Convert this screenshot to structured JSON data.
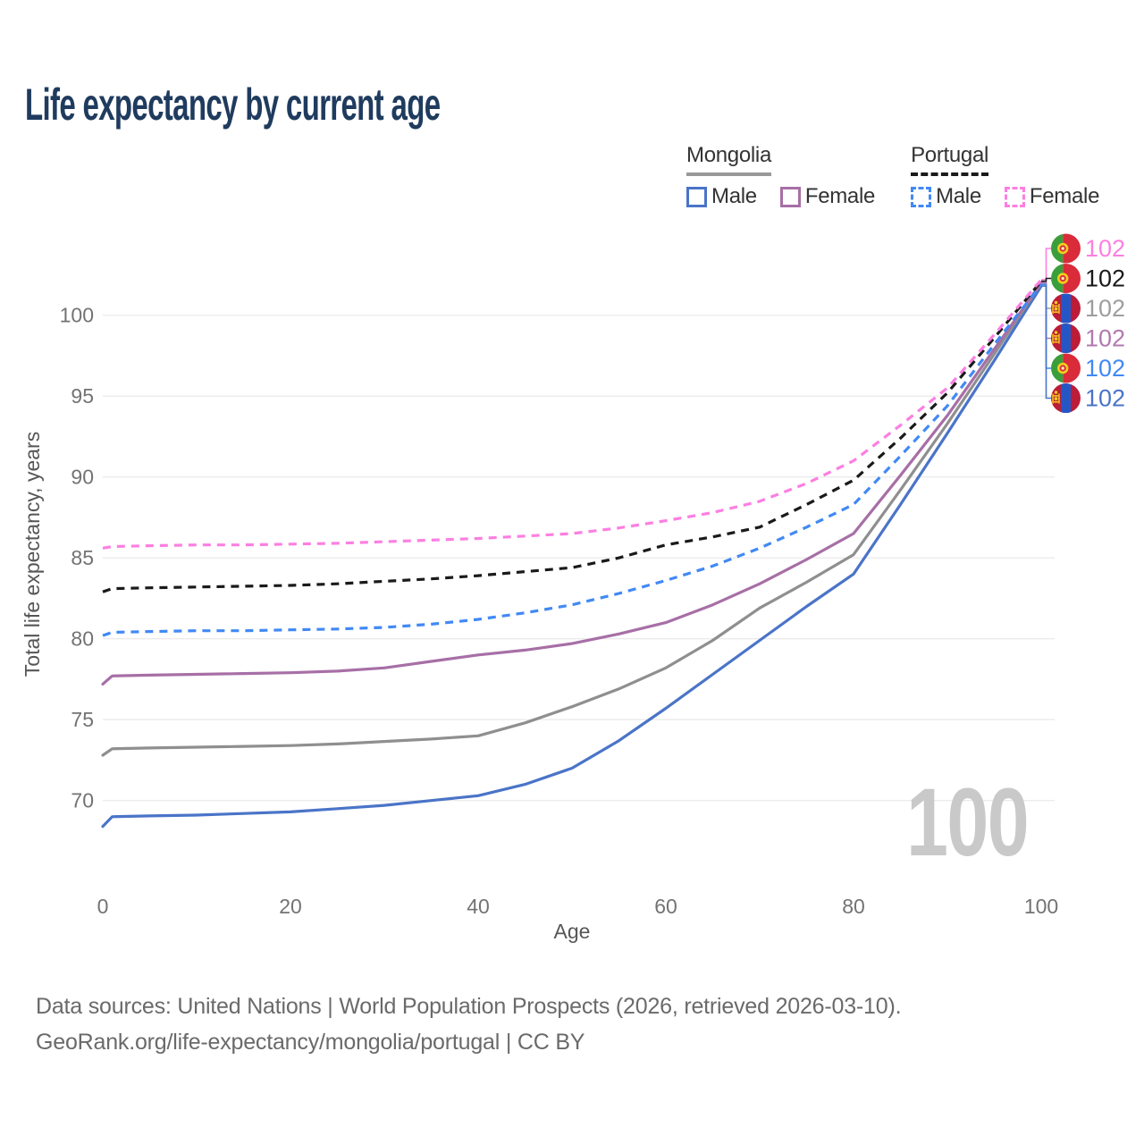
{
  "title": "Life expectancy by current age",
  "legend": {
    "groups": [
      {
        "name": "Mongolia",
        "underline_style": "solid",
        "underline_color": "#999999",
        "items": [
          {
            "label": "Male",
            "color": "#4a74c8",
            "dashed": false
          },
          {
            "label": "Female",
            "color": "#a76fa6",
            "dashed": false
          }
        ]
      },
      {
        "name": "Portugal",
        "underline_style": "dashed",
        "underline_color": "#1a1a1a",
        "items": [
          {
            "label": "Male",
            "color": "#4189f4",
            "dashed": true
          },
          {
            "label": "Female",
            "color": "#fc7fe1",
            "dashed": true
          }
        ]
      }
    ]
  },
  "watermark": "100",
  "footer": {
    "line1": "Data sources: United Nations | World Population Prospects (2026, retrieved 2026-03-10).",
    "line2": "GeoRank.org/life-expectancy/mongolia/portugal | CC BY"
  },
  "chart_data": {
    "type": "line",
    "title": "Life expectancy by current age",
    "xlabel": "Age",
    "ylabel": "Total life expectancy, years",
    "xlim": [
      0,
      100
    ],
    "ylim": [
      68,
      102.5
    ],
    "xticks": [
      0,
      20,
      40,
      60,
      80,
      100
    ],
    "yticks": [
      70,
      75,
      80,
      85,
      90,
      95,
      100
    ],
    "grid": "horizontal",
    "legend_position": "top-right",
    "x": [
      0,
      1,
      5,
      10,
      15,
      20,
      25,
      30,
      35,
      40,
      45,
      50,
      55,
      60,
      65,
      70,
      75,
      80,
      85,
      90,
      95,
      100
    ],
    "series": [
      {
        "name": "Mongolia Male",
        "country": "Mongolia",
        "sex": "Male",
        "color": "#4a74c8",
        "label_color": "#4a74c8",
        "dashed": false,
        "flag": "mongolia",
        "end_label": "102",
        "values": [
          68.4,
          69.0,
          69.05,
          69.1,
          69.2,
          69.3,
          69.5,
          69.7,
          70.0,
          70.3,
          71.0,
          72.0,
          73.7,
          75.7,
          77.8,
          79.9,
          82.0,
          84.0,
          88.3,
          92.7,
          97.2,
          101.8
        ]
      },
      {
        "name": "Mongolia",
        "country": "Mongolia",
        "sex": "Both",
        "color": "#8f8f8f",
        "label_color": "#9e9e9e",
        "dashed": false,
        "flag": "mongolia",
        "end_label": "102",
        "values": [
          72.8,
          73.2,
          73.25,
          73.3,
          73.35,
          73.4,
          73.5,
          73.65,
          73.8,
          74.0,
          74.8,
          75.8,
          76.9,
          78.2,
          79.9,
          81.9,
          83.5,
          85.2,
          89.2,
          93.3,
          97.6,
          102.0
        ]
      },
      {
        "name": "Mongolia Female",
        "country": "Mongolia",
        "sex": "Female",
        "color": "#a76fa6",
        "label_color": "#b279af",
        "dashed": false,
        "flag": "mongolia",
        "end_label": "102",
        "values": [
          77.2,
          77.7,
          77.75,
          77.8,
          77.85,
          77.9,
          78.0,
          78.2,
          78.6,
          79.0,
          79.3,
          79.7,
          80.3,
          81.0,
          82.1,
          83.4,
          84.9,
          86.5,
          90.1,
          93.8,
          97.9,
          102.0
        ]
      },
      {
        "name": "Portugal Male",
        "country": "Portugal",
        "sex": "Male",
        "color": "#4189f4",
        "label_color": "#4189f4",
        "dashed": true,
        "flag": "portugal",
        "end_label": "102",
        "values": [
          80.2,
          80.4,
          80.45,
          80.5,
          80.5,
          80.55,
          80.6,
          80.7,
          80.9,
          81.2,
          81.6,
          82.1,
          82.8,
          83.6,
          84.5,
          85.6,
          86.9,
          88.3,
          91.3,
          94.4,
          98.2,
          101.9
        ]
      },
      {
        "name": "Portugal",
        "country": "Portugal",
        "sex": "Both",
        "color": "#1a1a1a",
        "label_color": "#1a1a1a",
        "dashed": true,
        "flag": "portugal",
        "end_label": "102",
        "values": [
          82.9,
          83.1,
          83.15,
          83.2,
          83.25,
          83.3,
          83.4,
          83.55,
          83.7,
          83.9,
          84.15,
          84.4,
          85.0,
          85.8,
          86.3,
          86.9,
          88.3,
          89.8,
          92.4,
          95.2,
          98.6,
          102.1
        ]
      },
      {
        "name": "Portugal Female",
        "country": "Portugal",
        "sex": "Female",
        "color": "#fc7fe1",
        "label_color": "#fc7fe1",
        "dashed": true,
        "flag": "portugal",
        "end_label": "102",
        "values": [
          85.6,
          85.7,
          85.75,
          85.8,
          85.8,
          85.85,
          85.9,
          86.0,
          86.1,
          86.2,
          86.35,
          86.5,
          86.85,
          87.3,
          87.8,
          88.5,
          89.6,
          91.0,
          93.2,
          95.5,
          98.8,
          102.2
        ]
      }
    ],
    "end_labels_order": [
      "Portugal Female",
      "Portugal",
      "Mongolia",
      "Mongolia Female",
      "Portugal Male",
      "Mongolia Male"
    ]
  }
}
